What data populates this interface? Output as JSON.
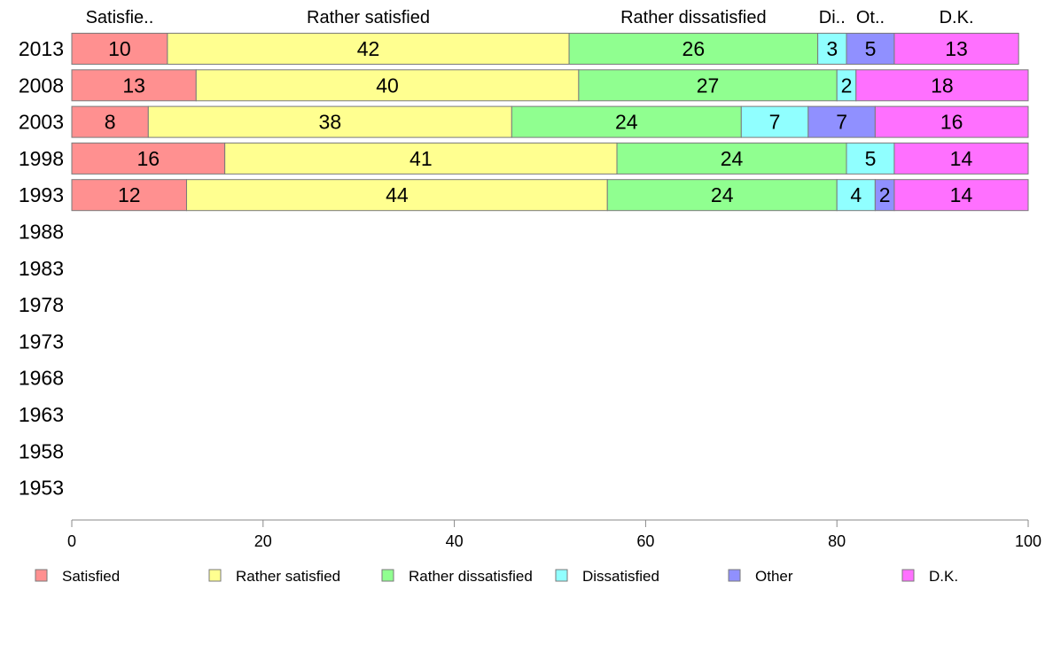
{
  "chart_data": {
    "type": "bar",
    "orientation": "horizontal",
    "stacked": true,
    "categories": [
      "2013",
      "2008",
      "2003",
      "1998",
      "1993",
      "1988",
      "1983",
      "1978",
      "1973",
      "1968",
      "1963",
      "1958",
      "1953"
    ],
    "series": [
      {
        "name": "Satisfied",
        "color": "#ff9090",
        "values": [
          10,
          13,
          8,
          16,
          12,
          null,
          null,
          null,
          null,
          null,
          null,
          null,
          null
        ]
      },
      {
        "name": "Rather satisfied",
        "color": "#ffff90",
        "values": [
          42,
          40,
          38,
          41,
          44,
          null,
          null,
          null,
          null,
          null,
          null,
          null,
          null
        ]
      },
      {
        "name": "Rather dissatisfied",
        "color": "#90ff90",
        "values": [
          26,
          27,
          24,
          24,
          24,
          null,
          null,
          null,
          null,
          null,
          null,
          null,
          null
        ]
      },
      {
        "name": "Dissatisfied",
        "color": "#90ffff",
        "values": [
          3,
          2,
          7,
          5,
          4,
          null,
          null,
          null,
          null,
          null,
          null,
          null,
          null
        ]
      },
      {
        "name": "Other",
        "color": "#9090ff",
        "values": [
          5,
          0,
          7,
          0,
          2,
          null,
          null,
          null,
          null,
          null,
          null,
          null,
          null
        ]
      },
      {
        "name": "D.K.",
        "color": "#ff70ff",
        "values": [
          13,
          18,
          16,
          14,
          14,
          null,
          null,
          null,
          null,
          null,
          null,
          null,
          null
        ]
      }
    ],
    "top_labels": [
      "Satisfie..",
      "Rather satisfied",
      "Rather dissatisfied",
      "Di..",
      "Ot..",
      "D.K."
    ],
    "xlim": [
      0,
      100
    ],
    "xticks": [
      0,
      20,
      40,
      60,
      80,
      100
    ],
    "grid": false,
    "legend_position": "bottom"
  }
}
